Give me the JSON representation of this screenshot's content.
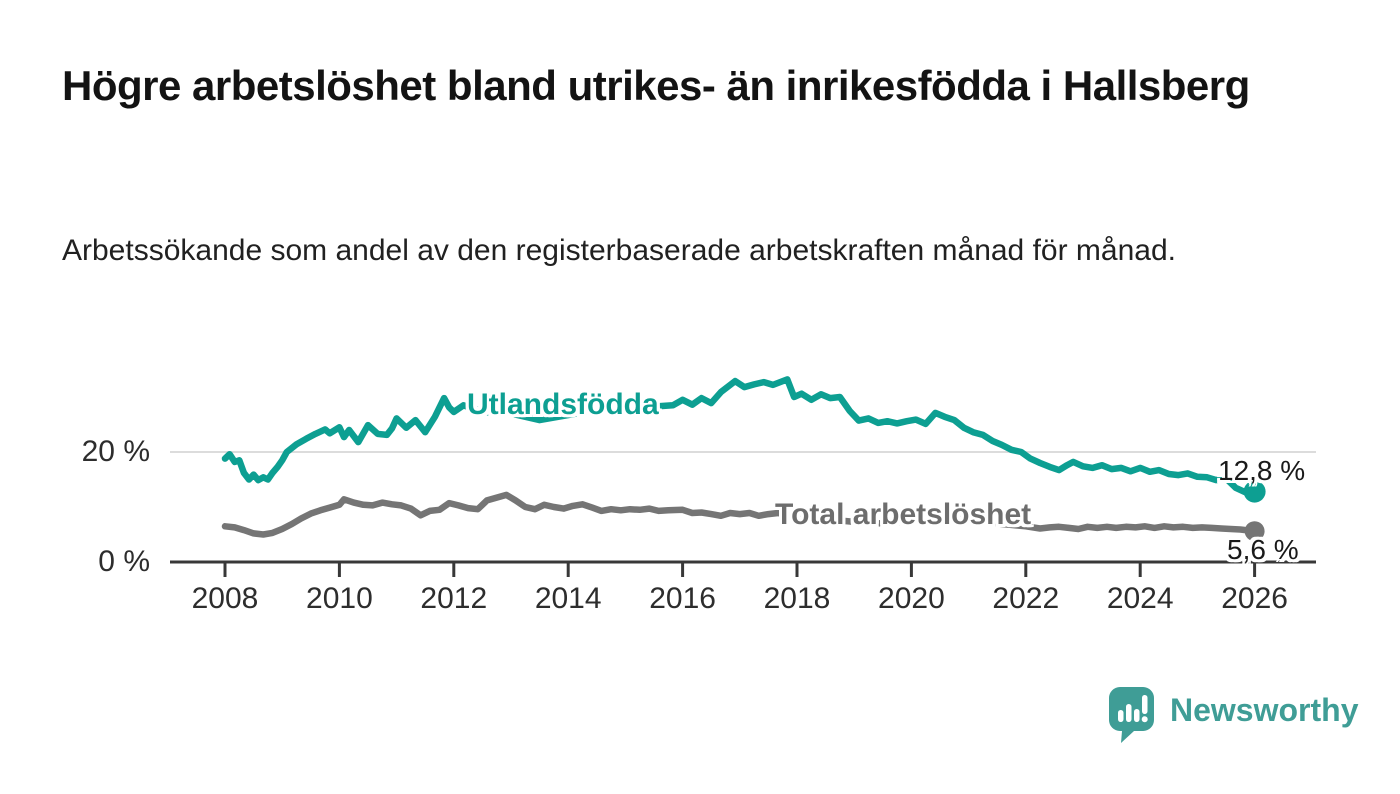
{
  "page": {
    "title": "Högre arbetslöshet bland utrikes- än inrikesfödda i Hallsberg",
    "subtitle": "Arbetssökande som andel av den registerbaserade arbetskraften månad för månad.",
    "background_color": "#ffffff"
  },
  "branding": {
    "logo_text": "Newsworthy",
    "logo_color": "#3f9d96",
    "logo_icon": "bar-chart-speech-bubble-icon"
  },
  "chart_data": {
    "type": "line",
    "unit": "%",
    "grid": "horizontal-only",
    "legend_position": "inline-labels-on-lines",
    "axis_color": "#383838",
    "gridline_color": "#dcdcdc",
    "x_axis": {
      "range": [
        2007.05,
        2027.05
      ],
      "ticks": [
        "2008",
        "2010",
        "2012",
        "2014",
        "2016",
        "2018",
        "2020",
        "2022",
        "2024",
        "2026"
      ],
      "tick_years": [
        2008,
        2010,
        2012,
        2014,
        2016,
        2018,
        2020,
        2022,
        2024,
        2026
      ]
    },
    "y_axis": {
      "range": [
        0,
        36
      ],
      "ticks": [
        {
          "value": 0,
          "label": "0 %"
        },
        {
          "value": 20,
          "label": "20 %"
        }
      ],
      "gridlines": [
        20
      ]
    },
    "series": [
      {
        "name": "Utlandsfödda",
        "color": "#0d9f92",
        "end_value": 12.8,
        "end_label": "12,8 %",
        "points": [
          [
            2008.0,
            18.8
          ],
          [
            2008.08,
            19.6
          ],
          [
            2008.17,
            18.2
          ],
          [
            2008.25,
            18.5
          ],
          [
            2008.33,
            16.2
          ],
          [
            2008.42,
            15.0
          ],
          [
            2008.5,
            15.9
          ],
          [
            2008.58,
            14.9
          ],
          [
            2008.67,
            15.4
          ],
          [
            2008.75,
            15.0
          ],
          [
            2008.83,
            16.2
          ],
          [
            2008.92,
            17.3
          ],
          [
            2009.0,
            18.5
          ],
          [
            2009.08,
            20.0
          ],
          [
            2009.25,
            21.4
          ],
          [
            2009.42,
            22.4
          ],
          [
            2009.58,
            23.3
          ],
          [
            2009.75,
            24.1
          ],
          [
            2009.83,
            23.4
          ],
          [
            2010.0,
            24.5
          ],
          [
            2010.08,
            22.7
          ],
          [
            2010.17,
            24.0
          ],
          [
            2010.33,
            21.8
          ],
          [
            2010.5,
            24.9
          ],
          [
            2010.67,
            23.3
          ],
          [
            2010.83,
            23.1
          ],
          [
            2010.92,
            24.3
          ],
          [
            2011.0,
            26.1
          ],
          [
            2011.17,
            24.4
          ],
          [
            2011.33,
            25.8
          ],
          [
            2011.5,
            23.6
          ],
          [
            2011.67,
            26.4
          ],
          [
            2011.83,
            29.8
          ],
          [
            2011.92,
            28.1
          ],
          [
            2012.0,
            27.3
          ],
          [
            2012.17,
            28.5
          ],
          [
            2012.33,
            27.9
          ],
          [
            2012.58,
            27.2
          ],
          [
            2012.83,
            27.8
          ],
          [
            2013.08,
            26.8
          ],
          [
            2013.5,
            25.8
          ],
          [
            2014.0,
            26.7
          ],
          [
            2014.33,
            27.4
          ],
          [
            2014.67,
            27.9
          ],
          [
            2015.0,
            27.6
          ],
          [
            2015.42,
            28.2
          ],
          [
            2015.83,
            28.5
          ],
          [
            2016.0,
            29.5
          ],
          [
            2016.17,
            28.6
          ],
          [
            2016.33,
            29.8
          ],
          [
            2016.5,
            28.9
          ],
          [
            2016.67,
            30.9
          ],
          [
            2016.92,
            32.9
          ],
          [
            2017.08,
            31.8
          ],
          [
            2017.25,
            32.3
          ],
          [
            2017.42,
            32.7
          ],
          [
            2017.58,
            32.2
          ],
          [
            2017.83,
            33.2
          ],
          [
            2017.95,
            30.0
          ],
          [
            2018.08,
            30.6
          ],
          [
            2018.25,
            29.5
          ],
          [
            2018.42,
            30.5
          ],
          [
            2018.58,
            29.8
          ],
          [
            2018.75,
            30.0
          ],
          [
            2018.92,
            27.5
          ],
          [
            2019.08,
            25.7
          ],
          [
            2019.25,
            26.1
          ],
          [
            2019.42,
            25.3
          ],
          [
            2019.58,
            25.6
          ],
          [
            2019.75,
            25.2
          ],
          [
            2019.92,
            25.6
          ],
          [
            2020.08,
            25.9
          ],
          [
            2020.25,
            25.1
          ],
          [
            2020.42,
            27.1
          ],
          [
            2020.58,
            26.4
          ],
          [
            2020.75,
            25.8
          ],
          [
            2020.92,
            24.4
          ],
          [
            2021.08,
            23.6
          ],
          [
            2021.25,
            23.1
          ],
          [
            2021.42,
            22.0
          ],
          [
            2021.58,
            21.3
          ],
          [
            2021.75,
            20.4
          ],
          [
            2021.92,
            20.0
          ],
          [
            2022.08,
            18.8
          ],
          [
            2022.25,
            18.0
          ],
          [
            2022.42,
            17.3
          ],
          [
            2022.58,
            16.7
          ],
          [
            2022.72,
            17.6
          ],
          [
            2022.83,
            18.2
          ],
          [
            2023.0,
            17.4
          ],
          [
            2023.17,
            17.1
          ],
          [
            2023.33,
            17.6
          ],
          [
            2023.5,
            16.9
          ],
          [
            2023.67,
            17.1
          ],
          [
            2023.83,
            16.5
          ],
          [
            2024.0,
            17.1
          ],
          [
            2024.17,
            16.4
          ],
          [
            2024.33,
            16.7
          ],
          [
            2024.5,
            16.0
          ],
          [
            2024.67,
            15.8
          ],
          [
            2024.83,
            16.1
          ],
          [
            2025.0,
            15.5
          ],
          [
            2025.17,
            15.4
          ],
          [
            2025.33,
            14.9
          ],
          [
            2025.5,
            15.2
          ],
          [
            2025.67,
            13.5
          ],
          [
            2025.83,
            12.7
          ],
          [
            2025.92,
            13.6
          ],
          [
            2026.0,
            12.8
          ]
        ]
      },
      {
        "name": "Total arbetslöshet",
        "color": "#757575",
        "end_value": 5.6,
        "end_label": "5,6 %",
        "points": [
          [
            2008.0,
            6.5
          ],
          [
            2008.17,
            6.3
          ],
          [
            2008.33,
            5.8
          ],
          [
            2008.5,
            5.2
          ],
          [
            2008.67,
            5.0
          ],
          [
            2008.83,
            5.3
          ],
          [
            2009.0,
            6.0
          ],
          [
            2009.17,
            6.9
          ],
          [
            2009.33,
            7.9
          ],
          [
            2009.5,
            8.8
          ],
          [
            2009.67,
            9.4
          ],
          [
            2009.83,
            9.9
          ],
          [
            2010.0,
            10.4
          ],
          [
            2010.08,
            11.4
          ],
          [
            2010.25,
            10.8
          ],
          [
            2010.42,
            10.4
          ],
          [
            2010.58,
            10.3
          ],
          [
            2010.75,
            10.8
          ],
          [
            2010.92,
            10.5
          ],
          [
            2011.08,
            10.3
          ],
          [
            2011.25,
            9.7
          ],
          [
            2011.42,
            8.5
          ],
          [
            2011.58,
            9.3
          ],
          [
            2011.75,
            9.5
          ],
          [
            2011.92,
            10.7
          ],
          [
            2012.08,
            10.3
          ],
          [
            2012.25,
            9.8
          ],
          [
            2012.42,
            9.6
          ],
          [
            2012.58,
            11.2
          ],
          [
            2012.75,
            11.7
          ],
          [
            2012.92,
            12.2
          ],
          [
            2013.08,
            11.2
          ],
          [
            2013.25,
            10.0
          ],
          [
            2013.42,
            9.6
          ],
          [
            2013.58,
            10.4
          ],
          [
            2013.75,
            10.0
          ],
          [
            2013.92,
            9.7
          ],
          [
            2014.08,
            10.2
          ],
          [
            2014.25,
            10.5
          ],
          [
            2014.42,
            9.9
          ],
          [
            2014.58,
            9.3
          ],
          [
            2014.75,
            9.6
          ],
          [
            2014.92,
            9.4
          ],
          [
            2015.08,
            9.6
          ],
          [
            2015.25,
            9.5
          ],
          [
            2015.42,
            9.7
          ],
          [
            2015.58,
            9.3
          ],
          [
            2015.75,
            9.4
          ],
          [
            2016.0,
            9.5
          ],
          [
            2016.17,
            8.9
          ],
          [
            2016.33,
            9.0
          ],
          [
            2016.5,
            8.7
          ],
          [
            2016.67,
            8.4
          ],
          [
            2016.83,
            8.9
          ],
          [
            2017.0,
            8.7
          ],
          [
            2017.17,
            8.9
          ],
          [
            2017.33,
            8.4
          ],
          [
            2017.5,
            8.7
          ],
          [
            2017.67,
            8.9
          ],
          [
            2018.0,
            8.3
          ],
          [
            2018.5,
            7.8
          ],
          [
            2019.0,
            7.3
          ],
          [
            2019.5,
            7.0
          ],
          [
            2020.0,
            7.4
          ],
          [
            2020.33,
            8.8
          ],
          [
            2020.67,
            8.3
          ],
          [
            2021.0,
            7.8
          ],
          [
            2021.5,
            7.0
          ],
          [
            2022.0,
            6.5
          ],
          [
            2022.25,
            6.1
          ],
          [
            2022.42,
            6.3
          ],
          [
            2022.58,
            6.4
          ],
          [
            2022.75,
            6.2
          ],
          [
            2022.92,
            6.0
          ],
          [
            2023.08,
            6.4
          ],
          [
            2023.25,
            6.2
          ],
          [
            2023.42,
            6.4
          ],
          [
            2023.58,
            6.2
          ],
          [
            2023.75,
            6.4
          ],
          [
            2023.92,
            6.3
          ],
          [
            2024.08,
            6.5
          ],
          [
            2024.25,
            6.2
          ],
          [
            2024.42,
            6.5
          ],
          [
            2024.58,
            6.3
          ],
          [
            2024.75,
            6.4
          ],
          [
            2024.92,
            6.2
          ],
          [
            2025.08,
            6.3
          ],
          [
            2025.25,
            6.2
          ],
          [
            2025.42,
            6.1
          ],
          [
            2025.58,
            6.0
          ],
          [
            2025.75,
            5.9
          ],
          [
            2025.92,
            5.7
          ],
          [
            2026.0,
            5.6
          ]
        ]
      }
    ]
  }
}
